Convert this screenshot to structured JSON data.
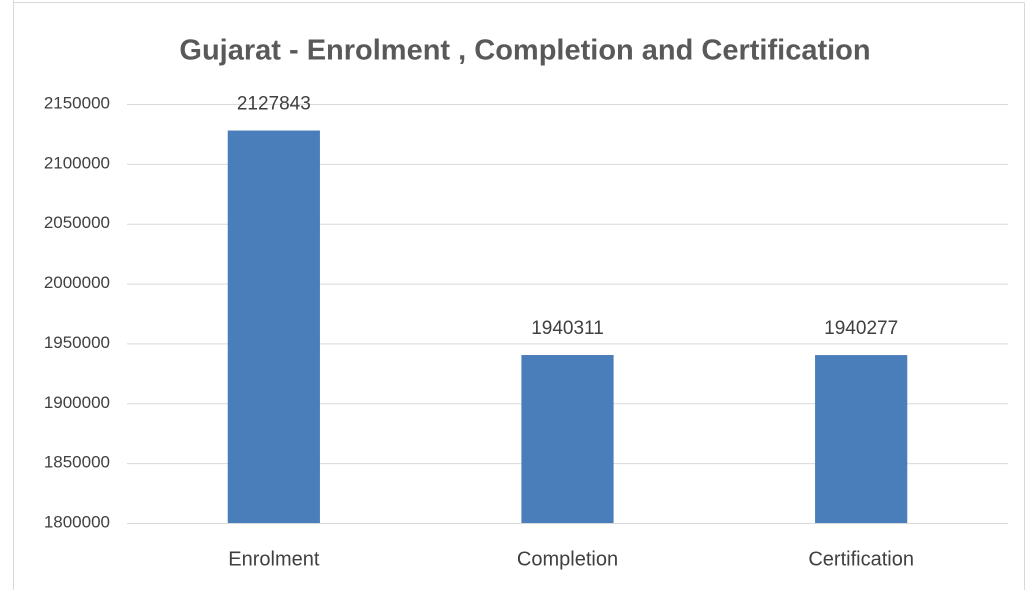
{
  "chart_data": {
    "type": "bar",
    "title": "Gujarat - Enrolment , Completion and Certification",
    "categories": [
      "Enrolment",
      "Completion",
      "Certification"
    ],
    "values": [
      2127843,
      1940311,
      1940277
    ],
    "color": "#4a7ebb",
    "ylim": [
      1800000,
      2150000
    ],
    "yticks": [
      1800000,
      1850000,
      1900000,
      1950000,
      2000000,
      2050000,
      2100000,
      2150000
    ],
    "grid": true
  }
}
